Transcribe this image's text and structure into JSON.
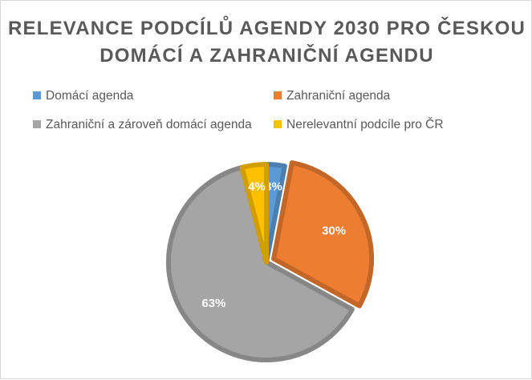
{
  "chart_data": {
    "type": "pie",
    "title_line1": "RELEVANCE PODCÍLŮ AGENDY 2030 PRO ČESKOU",
    "title_line2": "DOMÁCÍ A ZAHRANIČNÍ AGENDU",
    "legend_placement": "top",
    "slices": [
      {
        "name": "Domácí agenda",
        "value": 3,
        "label": "3%",
        "color": "#5b9bd5"
      },
      {
        "name": "Zahraniční agenda",
        "value": 30,
        "label": "30%",
        "color": "#ed7d31"
      },
      {
        "name": "Zahraniční a zároveň domácí agenda",
        "value": 63,
        "label": "63%",
        "color": "#a5a5a5"
      },
      {
        "name": "Nerelevantní podcíle pro ČR",
        "value": 4,
        "label": "4%",
        "color": "#ffc000"
      }
    ]
  }
}
